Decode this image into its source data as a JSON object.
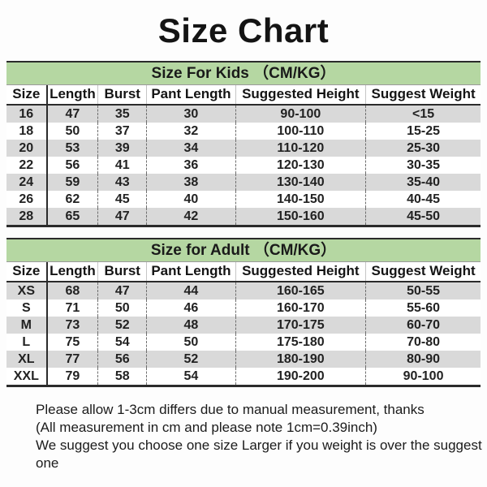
{
  "page": {
    "title": "Size Chart"
  },
  "colors": {
    "header_green": "#b5d7a2",
    "row_gray": "#d9d9d9",
    "border_dark": "#2b2b2b"
  },
  "chart_data": [
    {
      "type": "table",
      "title": "Size For Kids （CM/KG）",
      "columns": [
        "Size",
        "Length",
        "Burst",
        "Pant Length",
        "Suggested Height",
        "Suggest Weight"
      ],
      "rows": [
        [
          "16",
          "47",
          "35",
          "30",
          "90-100",
          "<15"
        ],
        [
          "18",
          "50",
          "37",
          "32",
          "100-110",
          "15-25"
        ],
        [
          "20",
          "53",
          "39",
          "34",
          "110-120",
          "25-30"
        ],
        [
          "22",
          "56",
          "41",
          "36",
          "120-130",
          "30-35"
        ],
        [
          "24",
          "59",
          "43",
          "38",
          "130-140",
          "35-40"
        ],
        [
          "26",
          "62",
          "45",
          "40",
          "140-150",
          "40-45"
        ],
        [
          "28",
          "65",
          "47",
          "42",
          "150-160",
          "45-50"
        ]
      ]
    },
    {
      "type": "table",
      "title": "Size for Adult （CM/KG）",
      "columns": [
        "Size",
        "Length",
        "Burst",
        "Pant Length",
        "Suggested Height",
        "Suggest Weight"
      ],
      "rows": [
        [
          "XS",
          "68",
          "47",
          "44",
          "160-165",
          "50-55"
        ],
        [
          "S",
          "71",
          "50",
          "46",
          "160-170",
          "55-60"
        ],
        [
          "M",
          "73",
          "52",
          "48",
          "170-175",
          "60-70"
        ],
        [
          "L",
          "75",
          "54",
          "50",
          "175-180",
          "70-80"
        ],
        [
          "XL",
          "77",
          "56",
          "52",
          "180-190",
          "80-90"
        ],
        [
          "XXL",
          "79",
          "58",
          "54",
          "190-200",
          "90-100"
        ]
      ]
    }
  ],
  "footer": {
    "lines": [
      "Please allow 1-3cm differs due to manual measurement, thanks",
      "(All measurement in cm and please note 1cm=0.39inch)",
      "We suggest you choose one size Larger if you weight is over the suggest one"
    ]
  }
}
